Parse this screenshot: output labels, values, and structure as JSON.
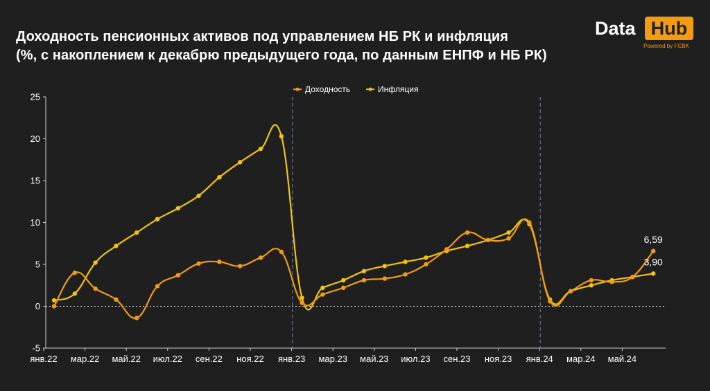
{
  "title_line1": "Доходность пенсионных активов под управлением НБ РК и инфляция",
  "title_line2": "(%, с накоплением к декабрю предыдущего года, по данным ЕНПФ и НБ РК)",
  "logo": {
    "data": "Data",
    "hub": "Hub",
    "powered": "Powered by FCBK"
  },
  "colors": {
    "background": "#1f1f1f",
    "return": "#f39c12",
    "inflation": "#f1c40f",
    "separator": "#5a6578"
  },
  "chart_data": {
    "type": "line",
    "legend_position": "top-center",
    "grid": false,
    "ylim": [
      -5,
      25
    ],
    "yticks": [
      -5,
      0,
      5,
      10,
      15,
      20,
      25
    ],
    "xtick_labels": [
      "янв.22",
      "мар.22",
      "май.22",
      "июл.22",
      "сен.22",
      "ноя.22",
      "янв.23",
      "мар.23",
      "май.23",
      "июл.23",
      "сен.23",
      "ноя.23",
      "янв.24",
      "мар.24",
      "май.24"
    ],
    "x": [
      "янв.22",
      "фев.22",
      "мар.22",
      "апр.22",
      "май.22",
      "июн.22",
      "июл.22",
      "авг.22",
      "сен.22",
      "окт.22",
      "ноя.22",
      "дек.22",
      "янв.23",
      "фев.23",
      "мар.23",
      "апр.23",
      "май.23",
      "июн.23",
      "июл.23",
      "авг.23",
      "сен.23",
      "окт.23",
      "ноя.23",
      "дек.23",
      "янв.24",
      "фев.24",
      "мар.24",
      "апр.24",
      "май.24",
      "июн.24"
    ],
    "year_separators_after": [
      "дек.22",
      "дек.23"
    ],
    "series": [
      {
        "name": "Доходность",
        "values": [
          0.0,
          4.0,
          2.1,
          0.8,
          -1.4,
          2.4,
          3.7,
          5.1,
          5.3,
          4.8,
          5.8,
          6.5,
          0.4,
          1.4,
          2.2,
          3.1,
          3.3,
          3.8,
          5.0,
          6.8,
          8.8,
          7.9,
          8.1,
          10.0,
          0.6,
          1.8,
          3.1,
          2.9,
          3.5,
          6.59
        ]
      },
      {
        "name": "Инфляция",
        "values": [
          0.7,
          1.5,
          5.2,
          7.2,
          8.8,
          10.4,
          11.7,
          13.2,
          15.4,
          17.2,
          18.8,
          20.3,
          1.0,
          2.2,
          3.1,
          4.2,
          4.8,
          5.3,
          5.8,
          6.6,
          7.2,
          7.9,
          8.8,
          9.8,
          0.8,
          1.8,
          2.5,
          3.1,
          3.5,
          3.9
        ]
      }
    ],
    "end_labels": {
      "return": "6,59",
      "inflation": "3,90"
    }
  }
}
